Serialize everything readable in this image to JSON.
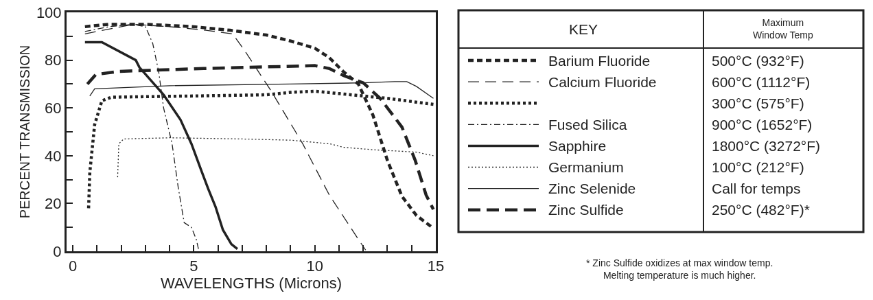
{
  "chart_data": {
    "type": "line",
    "xlabel": "WAVELENGTHS (Microns)",
    "ylabel": "PERCENT TRANSMISSION",
    "xlim": [
      -0.26,
      15
    ],
    "ylim": [
      0,
      100
    ],
    "xticks": [
      0,
      {
        "value": 1,
        "label": null
      },
      {
        "value": 2,
        "label": null
      },
      {
        "value": 3,
        "label": null
      },
      {
        "value": 4,
        "label": null
      },
      5,
      {
        "value": 6,
        "label": null
      },
      {
        "value": 7,
        "label": null
      },
      {
        "value": 8,
        "label": null
      },
      {
        "value": 9,
        "label": null
      },
      10,
      {
        "value": 11,
        "label": null
      },
      {
        "value": 12,
        "label": null
      },
      {
        "value": 13,
        "label": null
      },
      {
        "value": 14,
        "label": null
      },
      15
    ],
    "yticks": [
      0,
      {
        "value": 10,
        "label": null
      },
      20,
      {
        "value": 30,
        "label": null
      },
      40,
      {
        "value": 50,
        "label": null
      },
      60,
      {
        "value": 70,
        "label": null
      },
      80,
      {
        "value": 90,
        "label": null
      },
      100
    ],
    "legend": "right",
    "marker": "none",
    "series": [
      {
        "name": "Barium Fluoride",
        "color": "#222222",
        "line_style": "dashed",
        "x": [
          0.5,
          1.5,
          3,
          5,
          6.5,
          8,
          9,
          10,
          10.6,
          11.2,
          11.8,
          12.4,
          13,
          13.6,
          14.2,
          14.85
        ],
        "values": [
          94,
          95,
          95,
          94,
          92.5,
          90.5,
          88,
          85,
          81,
          75,
          70,
          57,
          38,
          23,
          15,
          10
        ]
      },
      {
        "name": "Calcium Fluoride",
        "color": "#222222",
        "line_style": "longdash",
        "x": [
          0.5,
          1.5,
          2.5,
          4,
          5.5,
          6.6,
          7.1,
          8.2,
          9.5,
          10.6,
          11.8,
          12.1
        ],
        "values": [
          91,
          93,
          95,
          94,
          92.5,
          91,
          84,
          67,
          45,
          23.5,
          5,
          0.5
        ]
      },
      {
        "color": "#222222",
        "line_style": "dotted",
        "x": [
          0.65,
          0.7,
          0.9,
          1.2,
          1.6,
          5,
          8,
          9,
          10,
          11,
          12,
          13,
          14.9
        ],
        "values": [
          18,
          33,
          53,
          63,
          64.5,
          65,
          65.5,
          66.5,
          67,
          66,
          65,
          64,
          61.5
        ]
      },
      {
        "name": "Fused Silica",
        "color": "#222222",
        "line_style": "dashdot",
        "x": [
          0.5,
          1.5,
          2.5,
          3,
          3.3,
          3.55,
          3.75,
          4.1,
          4.35,
          4.6,
          4.9,
          5.1,
          5.2
        ],
        "values": [
          92,
          94,
          95,
          94,
          87,
          75,
          60,
          45,
          27,
          12,
          10,
          5,
          0.5
        ]
      },
      {
        "name": "Sapphire",
        "color": "#222222",
        "line_style": "solid",
        "x": [
          0.5,
          1.2,
          2.6,
          2.75,
          3.75,
          4.45,
          4.9,
          5.3,
          5.6,
          5.9,
          6.2,
          6.55,
          6.8
        ],
        "values": [
          87.5,
          87.5,
          80,
          77,
          65.5,
          55,
          45,
          34,
          26,
          18.5,
          9,
          3,
          1
        ]
      },
      {
        "name": "Germanium",
        "color": "#222222",
        "line_style": "dotted",
        "x": [
          1.85,
          1.9,
          2.1,
          4,
          7,
          9,
          10.6,
          11.2,
          12.4,
          14.2,
          14.9
        ],
        "values": [
          31,
          45,
          47,
          47.5,
          47,
          46.5,
          45,
          43.5,
          42.5,
          41.5,
          40
        ]
      },
      {
        "name": "Zinc Selenide",
        "color": "#222222",
        "line_style": "solid",
        "x": [
          0.7,
          0.9,
          4,
          9,
          12,
          13.3,
          13.8,
          14.2,
          14.9
        ],
        "values": [
          65,
          68,
          69.3,
          70,
          70.5,
          71,
          71,
          69,
          64
        ]
      },
      {
        "name": "Zinc Sulfide",
        "color": "#222222",
        "line_style": "longdash",
        "x": [
          0.6,
          0.95,
          1.9,
          5.4,
          10,
          10.6,
          11.2,
          12,
          12.7,
          13.6,
          14.15,
          14.6,
          14.9
        ],
        "values": [
          70,
          74,
          75.3,
          76.5,
          77.7,
          76.5,
          73.5,
          70.5,
          64,
          52,
          38,
          23.5,
          17.5
        ]
      }
    ],
    "annotations": [
      "KEY",
      "Maximum\nWindow Temp",
      "500°C (932°F)",
      "600°C (1112°F)",
      "300°C (575°F)",
      "900°C (1652°F)",
      "1800°C (3272°F)",
      "100°C (212°F)",
      "Call for temps",
      "250°C (482°F)*",
      "* Zinc Sulfide oxidizes at max window temp.\nMelting temperature is much higher."
    ]
  }
}
